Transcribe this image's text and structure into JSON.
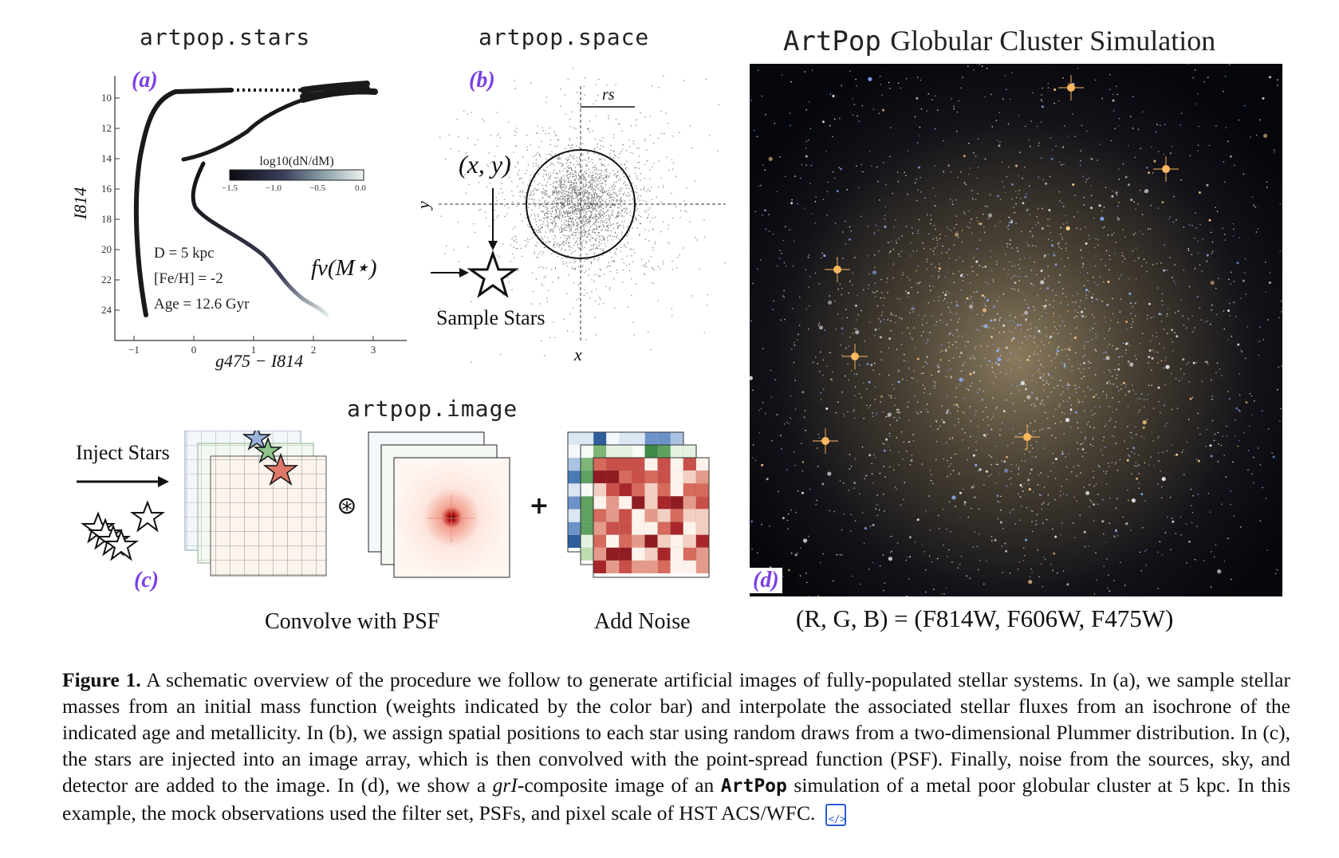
{
  "panel_a": {
    "header": "artpop.stars",
    "letter": "(a)",
    "xlabel": "g475 − I814",
    "ylabel": "I814",
    "xticks": [
      "−1",
      "0",
      "1",
      "2",
      "3"
    ],
    "yticks": [
      "10",
      "12",
      "14",
      "16",
      "18",
      "20",
      "22",
      "24"
    ],
    "colorbar_label": "log10(dN/dM)",
    "colorbar_ticks": [
      "−1.5",
      "−1.0",
      "−0.5",
      "0.0"
    ],
    "params": [
      "D = 5 kpc",
      "[Fe/H] = -2",
      "Age = 12.6 Gyr"
    ]
  },
  "panel_b": {
    "header": "artpop.space",
    "letter": "(b)",
    "rs_label": "rs",
    "xy_label": "(x, y)",
    "flux_label": "fν(M⋆)",
    "sample_label": "Sample Stars",
    "x_axis": "x",
    "y_axis": "y"
  },
  "panel_c": {
    "header": "artpop.image",
    "letter": "(c)",
    "inject_label": "Inject Stars",
    "convolve_symbol": "⊛",
    "plus_symbol": "+",
    "convolve_label": "Convolve with PSF",
    "noise_label": "Add Noise"
  },
  "panel_d": {
    "header_mono": "ArtPop",
    "header_rest": "Globular Cluster Simulation",
    "letter": "(d)",
    "rgb_label": "(R, G, B) = (F814W, F606W, F475W)"
  },
  "caption": {
    "label": "Figure 1.",
    "part1": " A schematic overview of the procedure we follow to generate artificial images of fully-populated stellar systems. In (a), we sample stellar masses from an initial mass function (weights indicated by the color bar) and interpolate the associated stellar fluxes from an isochrone of the indicated age and metallicity. In (b), we assign spatial positions to each star using random draws from a two-dimensional Plummer distribution. In (c), the stars are injected into an image array, which is then convolved with the point-spread function (PSF). Finally, noise from the sources, sky, and detector are added to the image. In (d), we show a ",
    "italic": "grI",
    "part2": "-composite image of an ",
    "code": "ArtPop",
    "part3": " simulation of a metal poor globular cluster at 5 kpc. In this example, the mock observations used the filter set, PSFs, and pixel scale of HST ACS/WFC."
  },
  "colors": {
    "accent": "#7b3fe4",
    "link": "#2b5cd6"
  }
}
